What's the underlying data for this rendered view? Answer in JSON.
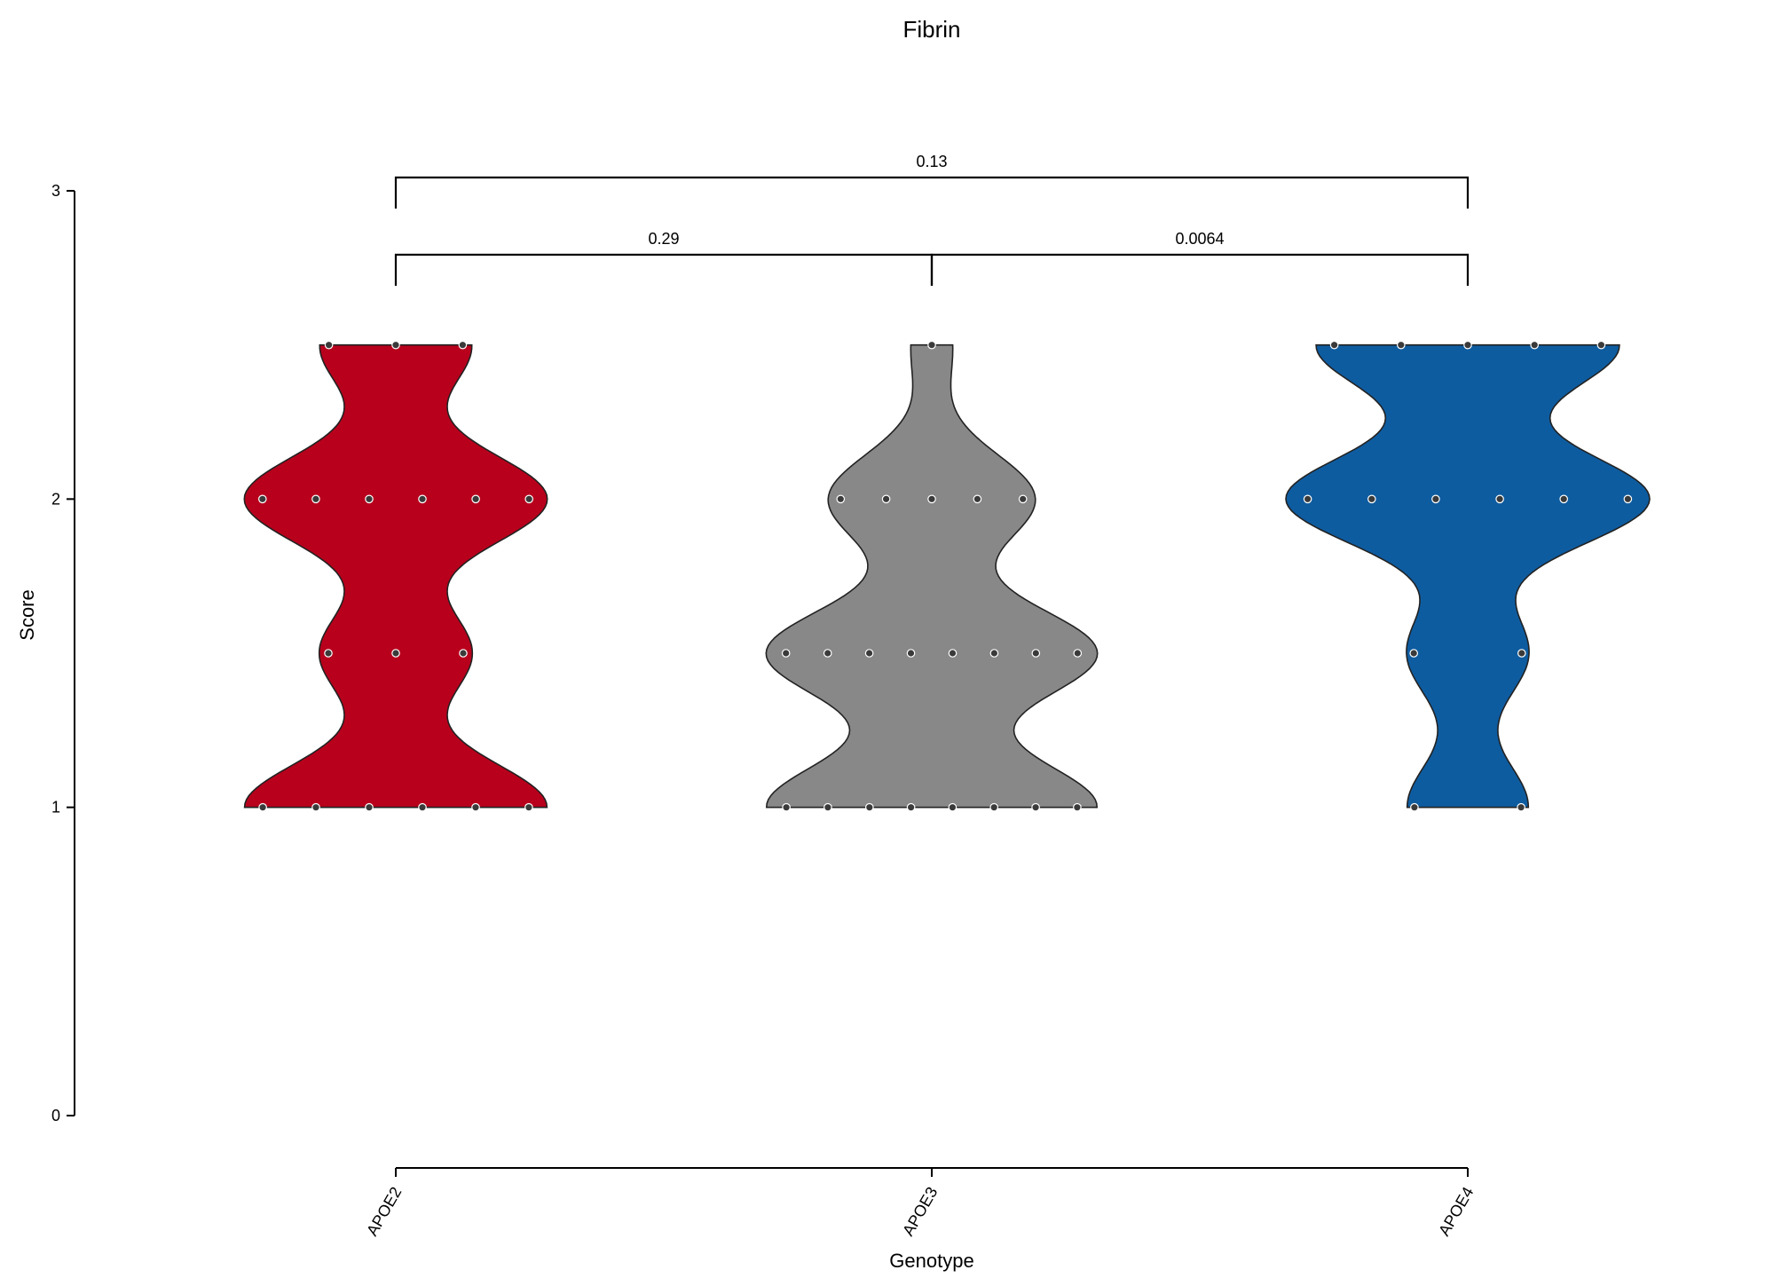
{
  "chart_data": {
    "type": "violin",
    "title": "Fibrin",
    "xlabel": "Genotype",
    "ylabel": "Score",
    "ylim": [
      0,
      3
    ],
    "yticks": [
      "0",
      "1",
      "2",
      "3"
    ],
    "categories": [
      "APOE2",
      "APOE3",
      "APOE4"
    ],
    "colors": {
      "APOE2": "#B8001C",
      "APOE3": "#888888",
      "APOE4": "#0E5CA0"
    },
    "series": [
      {
        "name": "APOE2",
        "values": [
          1,
          1,
          1,
          1,
          1,
          1,
          1.5,
          1.5,
          1.5,
          2,
          2,
          2,
          2,
          2,
          2,
          2.5,
          2.5,
          2.5
        ]
      },
      {
        "name": "APOE3",
        "values": [
          1,
          1,
          1,
          1,
          1,
          1,
          1,
          1,
          1.5,
          1.5,
          1.5,
          1.5,
          1.5,
          1.5,
          1.5,
          1.5,
          2,
          2,
          2,
          2,
          2,
          2.5
        ]
      },
      {
        "name": "APOE4",
        "values": [
          1,
          1,
          1.5,
          1.5,
          2,
          2,
          2,
          2,
          2,
          2,
          2.5,
          2.5,
          2.5,
          2.5,
          2.5
        ]
      }
    ],
    "comparisons": [
      {
        "groups": [
          "APOE2",
          "APOE3"
        ],
        "p": "0.29"
      },
      {
        "groups": [
          "APOE3",
          "APOE4"
        ],
        "p": "0.0064"
      },
      {
        "groups": [
          "APOE2",
          "APOE4"
        ],
        "p": "0.13"
      }
    ],
    "grid": false,
    "legend": "none"
  }
}
